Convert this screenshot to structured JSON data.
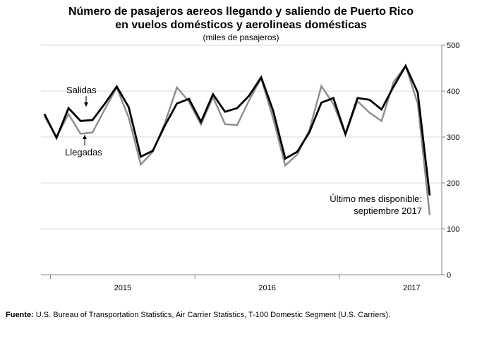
{
  "chart_data": {
    "type": "line",
    "title_line1": "Número de pasajeros aereos llegando y saliendo de Puerto Rico",
    "title_line2": "en vuelos domésticos y aerolineas domésticas",
    "subtitle": "(miles de pasajeros)",
    "ylim": [
      0,
      500
    ],
    "yticks": [
      "0",
      "100",
      "200",
      "300",
      "400",
      "500"
    ],
    "ytick_values": [
      0,
      100,
      200,
      300,
      400,
      500
    ],
    "grid": true,
    "year_labels": [
      "2015",
      "2016",
      "2017"
    ],
    "year_label_month_index": [
      7,
      19,
      31
    ],
    "year_boundary_month_index": [
      1,
      13,
      25
    ],
    "series": [
      {
        "name": "Salidas",
        "color": "#000000",
        "values": [
          350,
          298,
          363,
          335,
          337,
          372,
          410,
          365,
          257,
          270,
          325,
          373,
          383,
          333,
          393,
          355,
          363,
          390,
          430,
          357,
          253,
          268,
          310,
          375,
          385,
          306,
          385,
          381,
          360,
          410,
          455,
          397,
          173
        ]
      },
      {
        "name": "Llegadas",
        "color": "#8c8c8c",
        "values": [
          345,
          300,
          350,
          307,
          310,
          360,
          408,
          342,
          240,
          268,
          330,
          408,
          377,
          327,
          387,
          328,
          326,
          380,
          428,
          340,
          238,
          262,
          315,
          411,
          372,
          306,
          378,
          353,
          335,
          420,
          455,
          373,
          130
        ]
      }
    ],
    "annotations": {
      "salidas": "Salidas",
      "llegadas": "Llegadas",
      "ultimo_line1": "Último mes disponible:",
      "ultimo_line2": "septiembre 2017"
    }
  },
  "footnote": {
    "label": "Fuente:",
    "text": " U.S. Bureau of Transportation Statistics, Air Carrier Statistics, T-100 Domestic Segment (U.S. Carriers)."
  }
}
